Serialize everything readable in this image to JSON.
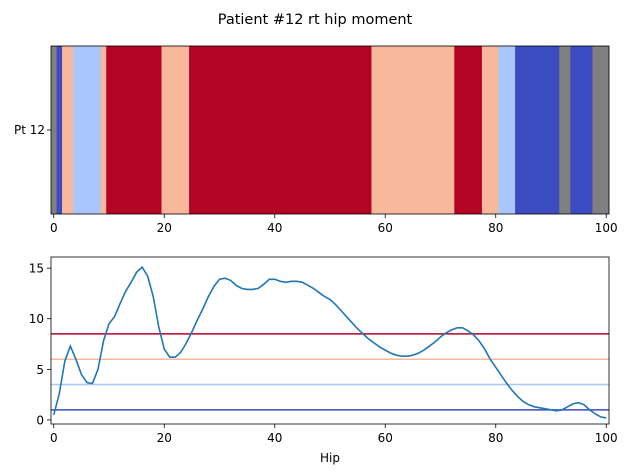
{
  "title": "Patient #12 rt hip moment",
  "chart_data": [
    {
      "type": "heatmap",
      "ylabel_row": "Pt 12",
      "xlim": [
        -0.5,
        100.5
      ],
      "xticks": [
        0,
        20,
        40,
        60,
        80,
        100
      ],
      "colors": {
        "gray": "#808080",
        "blue": "#3b4cc0",
        "lightblue": "#aac7fd",
        "salmon": "#f7b89c",
        "red": "#b40426"
      },
      "segments": [
        {
          "start": -0.5,
          "end": 0.5,
          "color": "gray"
        },
        {
          "start": 0.5,
          "end": 1.5,
          "color": "blue"
        },
        {
          "start": 1.5,
          "end": 3.5,
          "color": "salmon"
        },
        {
          "start": 3.5,
          "end": 8.5,
          "color": "lightblue"
        },
        {
          "start": 8.5,
          "end": 9.5,
          "color": "salmon"
        },
        {
          "start": 9.5,
          "end": 19.5,
          "color": "red"
        },
        {
          "start": 19.5,
          "end": 24.5,
          "color": "salmon"
        },
        {
          "start": 24.5,
          "end": 57.5,
          "color": "red"
        },
        {
          "start": 57.5,
          "end": 72.5,
          "color": "salmon"
        },
        {
          "start": 72.5,
          "end": 77.5,
          "color": "red"
        },
        {
          "start": 77.5,
          "end": 80.5,
          "color": "salmon"
        },
        {
          "start": 80.5,
          "end": 83.5,
          "color": "lightblue"
        },
        {
          "start": 83.5,
          "end": 91.5,
          "color": "blue"
        },
        {
          "start": 91.5,
          "end": 93.5,
          "color": "gray"
        },
        {
          "start": 93.5,
          "end": 97.5,
          "color": "blue"
        },
        {
          "start": 97.5,
          "end": 100.5,
          "color": "gray"
        }
      ]
    },
    {
      "type": "line",
      "xlabel": "Hip",
      "xlim": [
        -0.5,
        100.5
      ],
      "ylim": [
        -0.4,
        16.1
      ],
      "xticks": [
        0,
        20,
        40,
        60,
        80,
        100
      ],
      "yticks": [
        0,
        5,
        10,
        15
      ],
      "line_color": "#1f77b4",
      "thresholds": [
        {
          "value": 8.5,
          "color": "#b40426"
        },
        {
          "value": 6.0,
          "color": "#f7b89c"
        },
        {
          "value": 3.5,
          "color": "#aac7fd"
        },
        {
          "value": 1.0,
          "color": "#3b4cc0"
        }
      ],
      "series": [
        {
          "x": [
            0,
            1,
            2,
            3,
            4,
            5,
            6,
            7,
            8,
            9,
            10,
            11,
            12,
            13,
            14,
            15,
            16,
            17,
            18,
            19,
            20,
            21,
            22,
            23,
            24,
            25,
            26,
            27,
            28,
            29,
            30,
            31,
            32,
            33,
            34,
            35,
            36,
            37,
            38,
            39,
            40,
            41,
            42,
            43,
            44,
            45,
            46,
            47,
            48,
            49,
            50,
            51,
            52,
            53,
            54,
            55,
            56,
            57,
            58,
            59,
            60,
            61,
            62,
            63,
            64,
            65,
            66,
            67,
            68,
            69,
            70,
            71,
            72,
            73,
            74,
            75,
            76,
            77,
            78,
            79,
            80,
            81,
            82,
            83,
            84,
            85,
            86,
            87,
            88,
            89,
            90,
            91,
            92,
            93,
            94,
            95,
            96,
            97,
            98,
            99,
            100
          ],
          "y": [
            0.5,
            2.6,
            5.8,
            7.3,
            6.0,
            4.5,
            3.7,
            3.6,
            5.0,
            7.8,
            9.5,
            10.2,
            11.5,
            12.7,
            13.6,
            14.6,
            15.1,
            14.2,
            12.2,
            9.2,
            7.0,
            6.2,
            6.2,
            6.7,
            7.6,
            8.7,
            9.9,
            11.0,
            12.2,
            13.2,
            13.9,
            14.0,
            13.8,
            13.3,
            13.0,
            12.9,
            12.9,
            13.0,
            13.4,
            13.9,
            13.9,
            13.7,
            13.6,
            13.7,
            13.7,
            13.6,
            13.3,
            13.0,
            12.6,
            12.2,
            11.9,
            11.4,
            10.8,
            10.2,
            9.6,
            9.0,
            8.5,
            8.0,
            7.6,
            7.2,
            6.9,
            6.6,
            6.4,
            6.3,
            6.3,
            6.4,
            6.6,
            6.9,
            7.3,
            7.7,
            8.2,
            8.6,
            8.9,
            9.1,
            9.1,
            8.8,
            8.4,
            7.8,
            7.0,
            6.0,
            5.2,
            4.4,
            3.6,
            2.9,
            2.3,
            1.8,
            1.5,
            1.3,
            1.2,
            1.1,
            1.0,
            0.9,
            1.0,
            1.3,
            1.6,
            1.7,
            1.5,
            1.0,
            0.6,
            0.3,
            0.2
          ]
        }
      ]
    }
  ]
}
